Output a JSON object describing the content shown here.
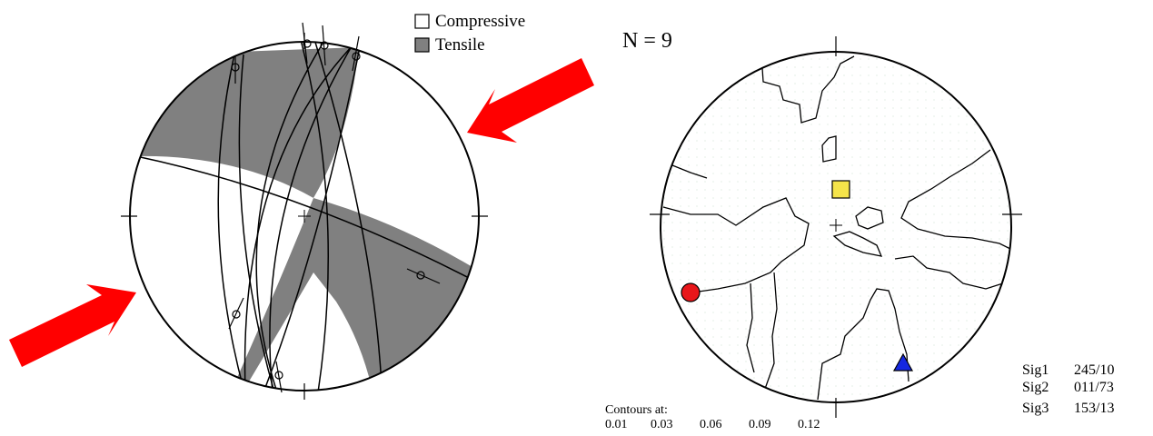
{
  "legend": {
    "compressive_label": "Compressive",
    "tensile_label": "Tensile",
    "compressive_color": "#ffffff",
    "tensile_color": "#808080"
  },
  "count_label": "N = 9",
  "arrow_color": "#ff0000",
  "contours": {
    "label": "Contours at:",
    "levels": [
      "0.01",
      "0.03",
      "0.06",
      "0.09",
      "0.12"
    ]
  },
  "stress_axes": [
    {
      "name": "Sig1",
      "value": "245/10",
      "symbol": "circle",
      "color": "#e8161a"
    },
    {
      "name": "Sig2",
      "value": "011/73",
      "symbol": "square",
      "color": "#f5e44a"
    },
    {
      "name": "Sig3",
      "value": "153/13",
      "symbol": "triangle",
      "color": "#1527e0"
    }
  ]
}
